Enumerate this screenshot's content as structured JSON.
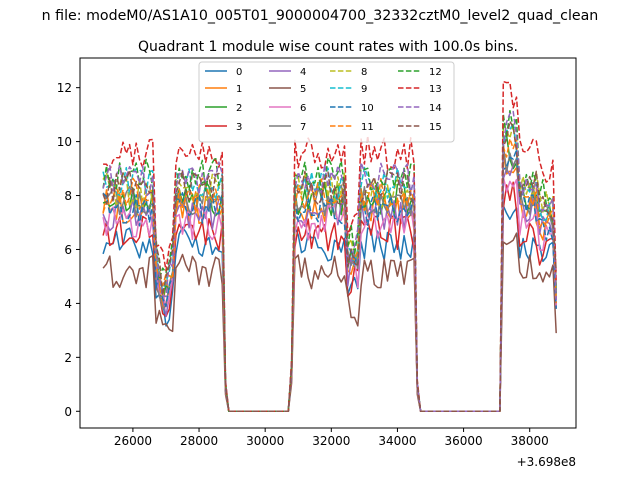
{
  "chart_data": {
    "type": "line",
    "suptitle": "n file: modeM0/AS1A10_005T01_9000004700_32332cztM0_level2_quad_clean",
    "title": "Quadrant 1 module wise count rates with 100.0s bins.",
    "xlabel": "",
    "ylabel": "",
    "offset_label": "+3.698e8",
    "xlim": [
      24400,
      39400
    ],
    "ylim": [
      -0.62,
      13.1
    ],
    "xticks": [
      26000,
      28000,
      30000,
      32000,
      34000,
      36000,
      38000
    ],
    "xtick_labels": [
      "26000",
      "28000",
      "30000",
      "32000",
      "34000",
      "36000",
      "38000"
    ],
    "yticks": [
      0,
      2,
      4,
      6,
      8,
      10,
      12
    ],
    "ytick_labels": [
      "0",
      "2",
      "4",
      "6",
      "8",
      "10",
      "12"
    ],
    "grid": false,
    "legend_position": "upper center",
    "legend_columns": 4,
    "segments": [
      {
        "start": 25100,
        "end": 28800,
        "step": 100
      },
      {
        "start": 28900,
        "end": 30800,
        "step": 100
      },
      {
        "start": 30900,
        "end": 34600,
        "step": 100
      },
      {
        "start": 34700,
        "end": 37100,
        "step": 100
      },
      {
        "start": 37200,
        "end": 38800,
        "step": 100
      }
    ],
    "series": [
      {
        "name": "0",
        "level": 6.2,
        "color": "#1f77b4",
        "dashed": false
      },
      {
        "name": "1",
        "level": 7.6,
        "color": "#ff7f0e",
        "dashed": false
      },
      {
        "name": "2",
        "level": 7.9,
        "color": "#2ca02c",
        "dashed": false
      },
      {
        "name": "3",
        "level": 6.6,
        "color": "#d62728",
        "dashed": false
      },
      {
        "name": "4",
        "level": 7.3,
        "color": "#9467bd",
        "dashed": false
      },
      {
        "name": "5",
        "level": 5.2,
        "color": "#8c564b",
        "dashed": false
      },
      {
        "name": "6",
        "level": 7.0,
        "color": "#e377c2",
        "dashed": false
      },
      {
        "name": "7",
        "level": 7.8,
        "color": "#7f7f7f",
        "dashed": false
      },
      {
        "name": "8",
        "level": 8.2,
        "color": "#bcbd22",
        "dashed": true
      },
      {
        "name": "9",
        "level": 8.4,
        "color": "#17becf",
        "dashed": true
      },
      {
        "name": "10",
        "level": 7.5,
        "color": "#1f77b4",
        "dashed": true
      },
      {
        "name": "11",
        "level": 8.0,
        "color": "#ff7f0e",
        "dashed": true
      },
      {
        "name": "12",
        "level": 8.8,
        "color": "#2ca02c",
        "dashed": true
      },
      {
        "name": "13",
        "level": 9.6,
        "color": "#d62728",
        "dashed": true
      },
      {
        "name": "14",
        "level": 8.6,
        "color": "#9467bd",
        "dashed": true
      },
      {
        "name": "15",
        "level": 8.3,
        "color": "#8c564b",
        "dashed": true
      }
    ]
  }
}
